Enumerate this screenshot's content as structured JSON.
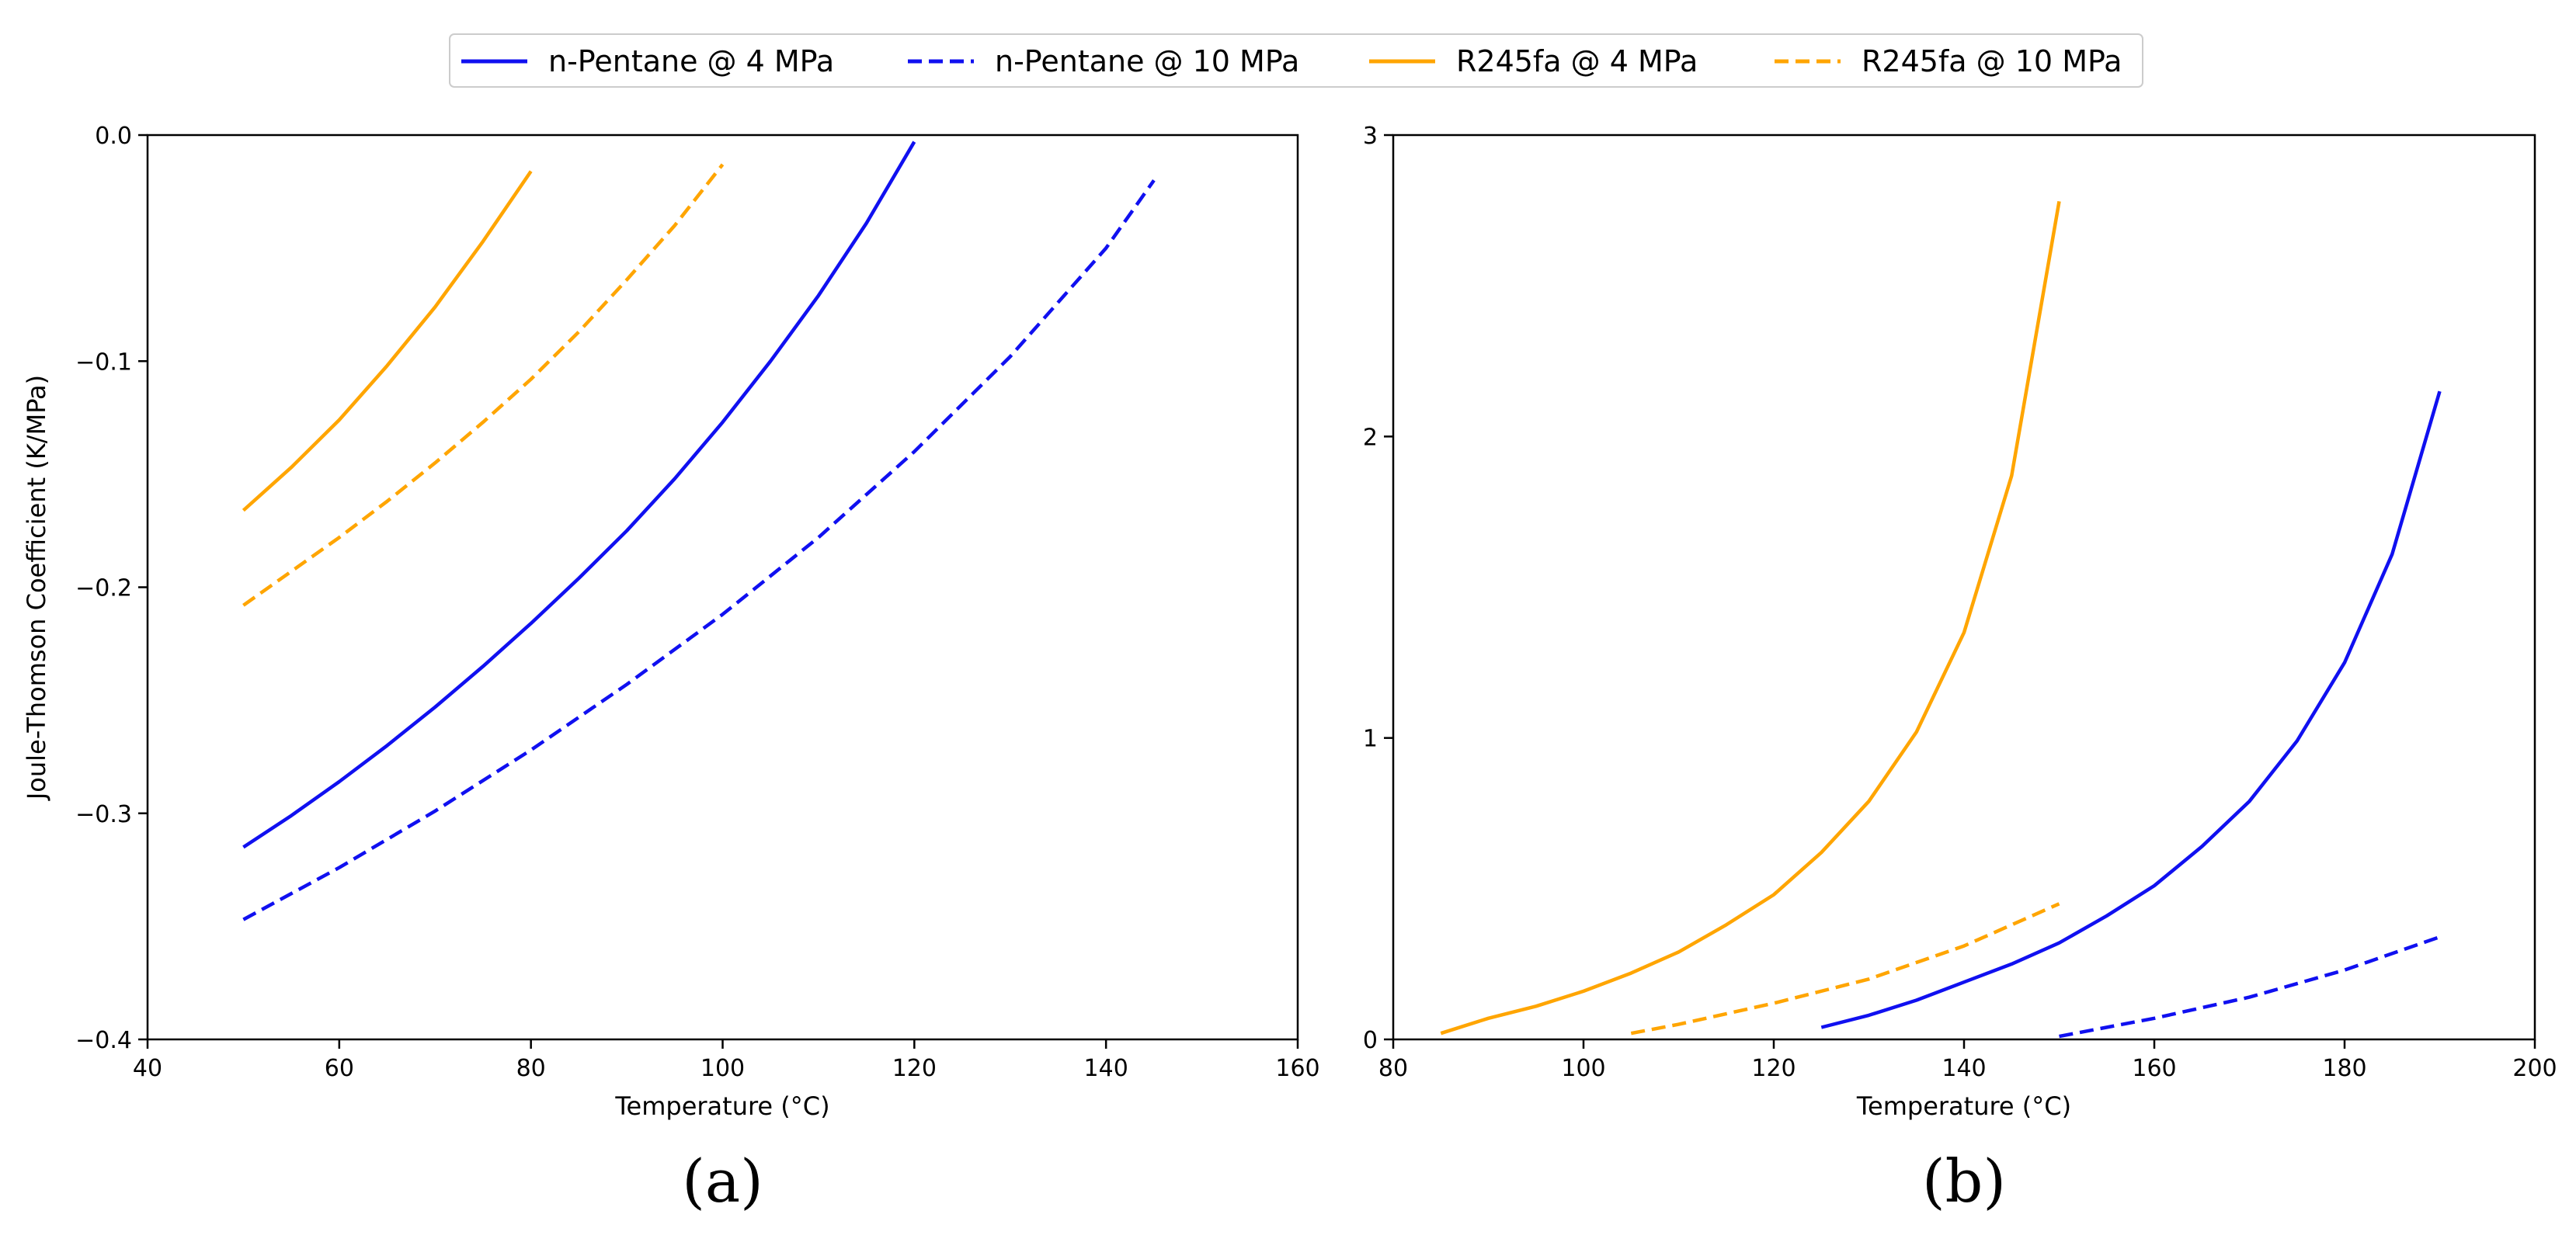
{
  "colors": {
    "n_pentane": "#1010f0",
    "r245fa": "#ffa500",
    "frame": "#000000",
    "legend_border": "#cccccc"
  },
  "legend": [
    {
      "label": "n-Pentane @ 4 MPa",
      "color": "#1010f0",
      "style": "solid"
    },
    {
      "label": "n-Pentane @ 10 MPa",
      "color": "#1010f0",
      "style": "dashed"
    },
    {
      "label": "R245fa @ 4 MPa",
      "color": "#ffa500",
      "style": "solid"
    },
    {
      "label": "R245fa @ 10 MPa",
      "color": "#ffa500",
      "style": "dashed"
    }
  ],
  "chart_data": [
    {
      "type": "line",
      "panel_label": "(a)",
      "xlabel": "Temperature (°C)",
      "ylabel": "Joule-Thomson Coefficient (K/MPa)",
      "xlim": [
        40,
        160
      ],
      "ylim": [
        -0.4,
        0.0
      ],
      "xticks": [
        40,
        60,
        80,
        100,
        120,
        140,
        160
      ],
      "yticks": [
        -0.4,
        -0.3,
        -0.2,
        -0.1,
        0.0
      ],
      "xtick_labels": [
        "40",
        "60",
        "80",
        "100",
        "120",
        "140",
        "160"
      ],
      "ytick_labels": [
        "−0.4",
        "−0.3",
        "−0.2",
        "−0.1",
        "0.0"
      ],
      "series": [
        {
          "name": "n-Pentane @ 4 MPa",
          "color": "#1010f0",
          "style": "solid",
          "x": [
            50,
            55,
            60,
            65,
            70,
            75,
            80,
            85,
            90,
            95,
            100,
            105,
            110,
            115,
            120
          ],
          "y": [
            -0.315,
            -0.301,
            -0.286,
            -0.27,
            -0.253,
            -0.235,
            -0.216,
            -0.196,
            -0.175,
            -0.152,
            -0.127,
            -0.1,
            -0.071,
            -0.039,
            -0.003
          ]
        },
        {
          "name": "n-Pentane @ 10 MPa",
          "color": "#1010f0",
          "style": "dashed",
          "x": [
            50,
            60,
            70,
            80,
            90,
            100,
            110,
            120,
            130,
            140,
            145
          ],
          "y": [
            -0.347,
            -0.324,
            -0.299,
            -0.272,
            -0.243,
            -0.212,
            -0.178,
            -0.14,
            -0.098,
            -0.05,
            -0.02
          ]
        },
        {
          "name": "R245fa @ 4 MPa",
          "color": "#ffa500",
          "style": "solid",
          "x": [
            50,
            55,
            60,
            65,
            70,
            75,
            80
          ],
          "y": [
            -0.166,
            -0.147,
            -0.126,
            -0.102,
            -0.076,
            -0.047,
            -0.016
          ]
        },
        {
          "name": "R245fa @ 10 MPa",
          "color": "#ffa500",
          "style": "dashed",
          "x": [
            50,
            55,
            60,
            65,
            70,
            75,
            80,
            85,
            90,
            95,
            100
          ],
          "y": [
            -0.208,
            -0.193,
            -0.178,
            -0.162,
            -0.145,
            -0.127,
            -0.108,
            -0.087,
            -0.064,
            -0.04,
            -0.013
          ]
        }
      ]
    },
    {
      "type": "line",
      "panel_label": "(b)",
      "xlabel": "Temperature (°C)",
      "ylabel": "",
      "xlim": [
        80,
        200
      ],
      "ylim": [
        0,
        3
      ],
      "xticks": [
        80,
        100,
        120,
        140,
        160,
        180,
        200
      ],
      "yticks": [
        0,
        1,
        2,
        3
      ],
      "xtick_labels": [
        "80",
        "100",
        "120",
        "140",
        "160",
        "180",
        "200"
      ],
      "ytick_labels": [
        "0",
        "1",
        "2",
        "3"
      ],
      "series": [
        {
          "name": "n-Pentane @ 4 MPa",
          "color": "#1010f0",
          "style": "solid",
          "x": [
            125,
            130,
            135,
            140,
            145,
            150,
            155,
            160,
            165,
            170,
            175,
            180,
            185,
            190
          ],
          "y": [
            0.04,
            0.08,
            0.13,
            0.19,
            0.25,
            0.32,
            0.41,
            0.51,
            0.64,
            0.79,
            0.99,
            1.25,
            1.61,
            2.15
          ]
        },
        {
          "name": "n-Pentane @ 10 MPa",
          "color": "#1010f0",
          "style": "dashed",
          "x": [
            150,
            160,
            170,
            180,
            190
          ],
          "y": [
            0.01,
            0.07,
            0.14,
            0.23,
            0.34
          ]
        },
        {
          "name": "R245fa @ 4 MPa",
          "color": "#ffa500",
          "style": "solid",
          "x": [
            85,
            90,
            95,
            100,
            105,
            110,
            115,
            120,
            125,
            130,
            135,
            140,
            145,
            150
          ],
          "y": [
            0.02,
            0.07,
            0.11,
            0.16,
            0.22,
            0.29,
            0.38,
            0.48,
            0.62,
            0.79,
            1.02,
            1.35,
            1.87,
            2.78
          ]
        },
        {
          "name": "R245fa @ 10 MPa",
          "color": "#ffa500",
          "style": "dashed",
          "x": [
            105,
            110,
            120,
            130,
            140,
            150
          ],
          "y": [
            0.02,
            0.05,
            0.12,
            0.2,
            0.31,
            0.45
          ]
        }
      ]
    }
  ]
}
